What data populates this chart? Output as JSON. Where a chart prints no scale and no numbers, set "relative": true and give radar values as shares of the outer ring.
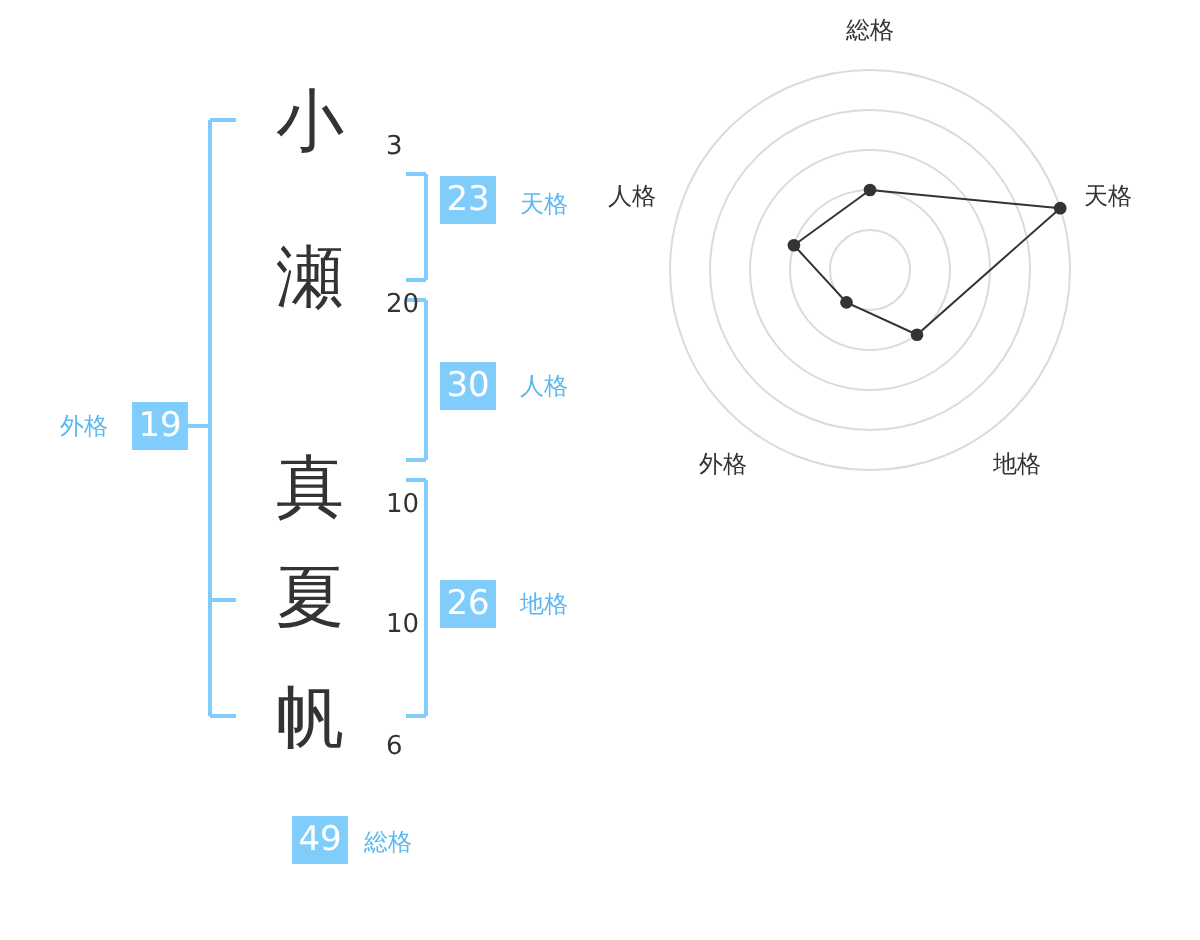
{
  "chart_data": [
    {
      "type": "other",
      "annotations": [
        "小",
        "3",
        "瀬",
        "20",
        "真",
        "10",
        "夏",
        "10",
        "帆",
        "6",
        "23",
        "天格",
        "30",
        "人格",
        "26",
        "地格",
        "19",
        "外格",
        "49",
        "総格"
      ]
    },
    {
      "type": "radar",
      "categories": [
        "総格",
        "天格",
        "地格",
        "外格",
        "人格"
      ],
      "relative": true,
      "grid": true,
      "series": [
        {
          "color": "#333333",
          "values": [
            0.4,
            1.0,
            0.4,
            0.2,
            0.4
          ]
        }
      ]
    }
  ]
}
